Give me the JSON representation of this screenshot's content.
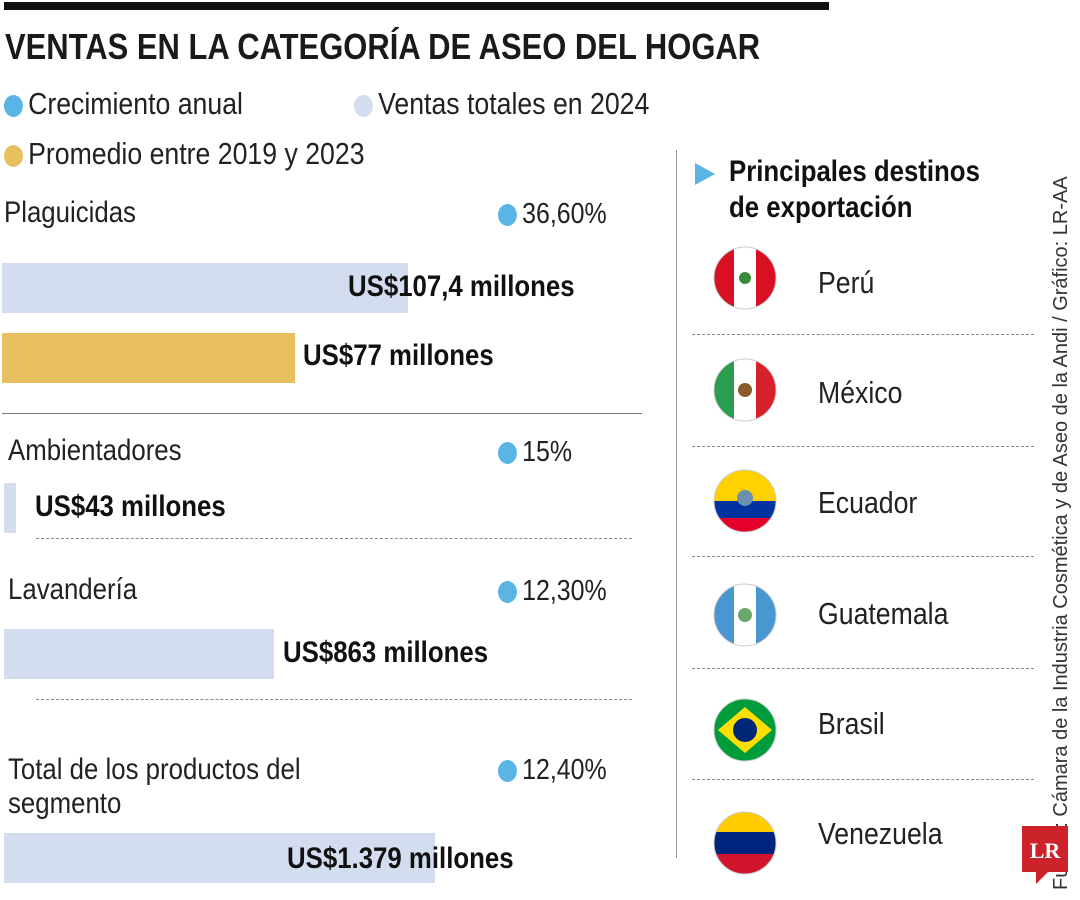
{
  "title": "VENTAS EN LA CATEGORÍA DE ASEO DEL HOGAR",
  "legend": [
    {
      "label": "Crecimiento anual",
      "color": "#5ab4e5"
    },
    {
      "label": "Ventas totales en 2024",
      "color": "#d4ddf0"
    },
    {
      "label": "Promedio entre 2019 y 2023",
      "color": "#e8c060"
    }
  ],
  "chart_data": {
    "type": "bar",
    "categories": [
      "Plaguicidas",
      "Ambientadores",
      "Lavandería",
      "Total de los productos del segmento"
    ],
    "growth": [
      "36,60%",
      "15%",
      "12,30%",
      "12,40%"
    ],
    "series": [
      {
        "name": "Ventas totales en 2024",
        "values": [
          107.4,
          43,
          863,
          1379
        ],
        "labels": [
          "US$107,4 millones",
          "US$43 millones",
          "US$863 millones",
          "US$1.379 millones"
        ]
      },
      {
        "name": "Promedio entre 2019 y 2023",
        "values": [
          77,
          null,
          null,
          null
        ],
        "labels": [
          "US$77 millones",
          null,
          null,
          null
        ]
      }
    ],
    "unit": "millones de US$"
  },
  "destinations": {
    "title_line1": "Principales destinos",
    "title_line2": "de exportación",
    "countries": [
      "Perú",
      "México",
      "Ecuador",
      "Guatemala",
      "Brasil",
      "Venezuela"
    ]
  },
  "source": "Fuente: Cámara de la Industria Cosmética y de Aseo de la Andi / Gráfico: LR-AA",
  "logo": "LR"
}
